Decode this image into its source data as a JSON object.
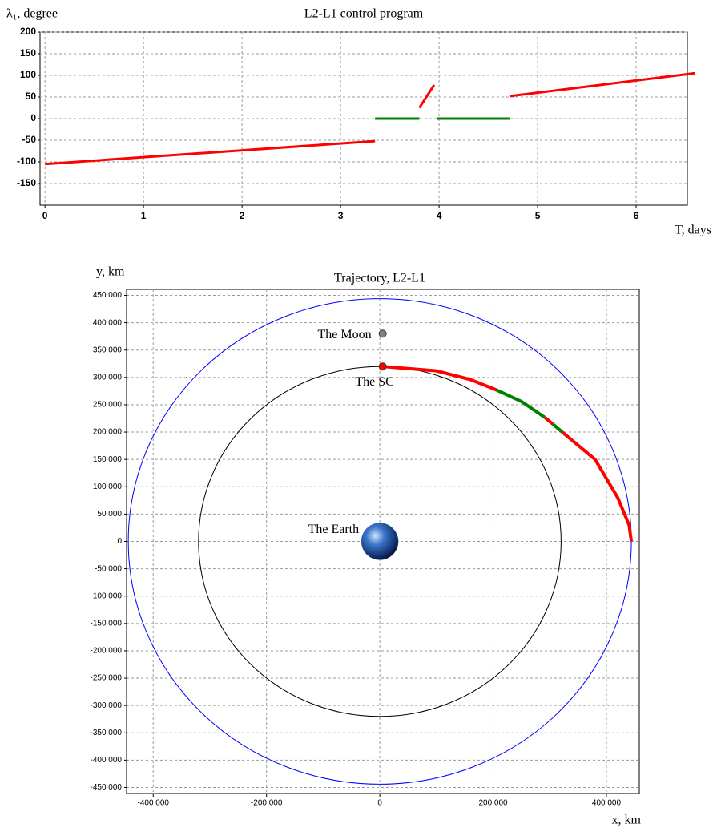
{
  "chart_data": [
    {
      "type": "line",
      "title": "L2-L1 control program",
      "y_label": "λ₁, degree",
      "x_label": "T, days",
      "xlim": [
        -0.05,
        6.52
      ],
      "ylim": [
        -200,
        200
      ],
      "xticks": [
        0,
        1,
        2,
        3,
        4,
        5,
        6
      ],
      "yticks": [
        -150,
        -100,
        -50,
        0,
        50,
        100,
        150,
        200
      ],
      "grid": true,
      "series": [
        {
          "color": "#ff0000",
          "x": [
            0,
            3.35,
            3.36,
            3.8,
            3.95,
            3.96,
            4.72,
            6.6
          ],
          "values": [
            -105,
            -52,
            null,
            25,
            78,
            null,
            52,
            105
          ]
        },
        {
          "color": "#008000",
          "x": [
            3.35,
            3.8,
            3.81,
            3.98,
            4.72
          ],
          "values": [
            0,
            0,
            null,
            0,
            0
          ]
        }
      ]
    },
    {
      "type": "line",
      "title": "Trajectory, L2-L1",
      "y_label": "y, km",
      "x_label": "x, km",
      "xlim": [
        -447000,
        458000
      ],
      "ylim": [
        -461000,
        461000
      ],
      "xticks": [
        {
          "value": -400000,
          "label": "-400 000"
        },
        {
          "value": -200000,
          "label": "-200 000"
        },
        {
          "value": 0,
          "label": "0"
        },
        {
          "value": 200000,
          "label": "200 000"
        },
        {
          "value": 400000,
          "label": "400 000"
        }
      ],
      "yticks": [
        {
          "value": 450000,
          "label": "450 000"
        },
        {
          "value": 400000,
          "label": "400 000"
        },
        {
          "value": 350000,
          "label": "350 000"
        },
        {
          "value": 300000,
          "label": "300 000"
        },
        {
          "value": 250000,
          "label": "250 000"
        },
        {
          "value": 200000,
          "label": "200 000"
        },
        {
          "value": 150000,
          "label": "150 000"
        },
        {
          "value": 100000,
          "label": "100 000"
        },
        {
          "value": 50000,
          "label": "50 000"
        },
        {
          "value": 0,
          "label": "0"
        },
        {
          "value": -50000,
          "label": "-50 000"
        },
        {
          "value": -100000,
          "label": "-100 000"
        },
        {
          "value": -150000,
          "label": "-150 000"
        },
        {
          "value": -200000,
          "label": "-200 000"
        },
        {
          "value": -250000,
          "label": "-250 000"
        },
        {
          "value": -300000,
          "label": "-300 000"
        },
        {
          "value": -350000,
          "label": "-350 000"
        },
        {
          "value": -400000,
          "label": "-400 000"
        },
        {
          "value": -450000,
          "label": "-450 000"
        }
      ],
      "grid": true,
      "circles": [
        {
          "color": "#0000ff",
          "radius": 444000
        },
        {
          "color": "#000000",
          "radius": 320000
        }
      ],
      "series": [
        {
          "color": "#ff0000",
          "x": [
            5000,
            100000,
            160000,
            206000,
            206500,
            291000,
            305000,
            305500,
            322000,
            380000,
            420000,
            440000,
            444000
          ],
          "values": [
            320000,
            312000,
            296000,
            277000,
            null,
            227000,
            215000,
            null,
            200000,
            150000,
            80000,
            30000,
            0
          ]
        },
        {
          "color": "#008000",
          "x": [
            206000,
            250000,
            291000,
            291500,
            305000,
            322000
          ],
          "values": [
            277000,
            256000,
            227000,
            null,
            215000,
            200000
          ]
        }
      ],
      "points": [
        {
          "label": "The Moon",
          "x": 5000,
          "y": 380000,
          "color": "#808080",
          "marker": "dot"
        },
        {
          "label": "The SC",
          "x": 5000,
          "y": 320000,
          "color": "#ff0000",
          "marker": "dot"
        },
        {
          "label": "The Earth",
          "x": 0,
          "y": 0,
          "color": "#2a5db0",
          "marker": "globe"
        }
      ]
    }
  ]
}
